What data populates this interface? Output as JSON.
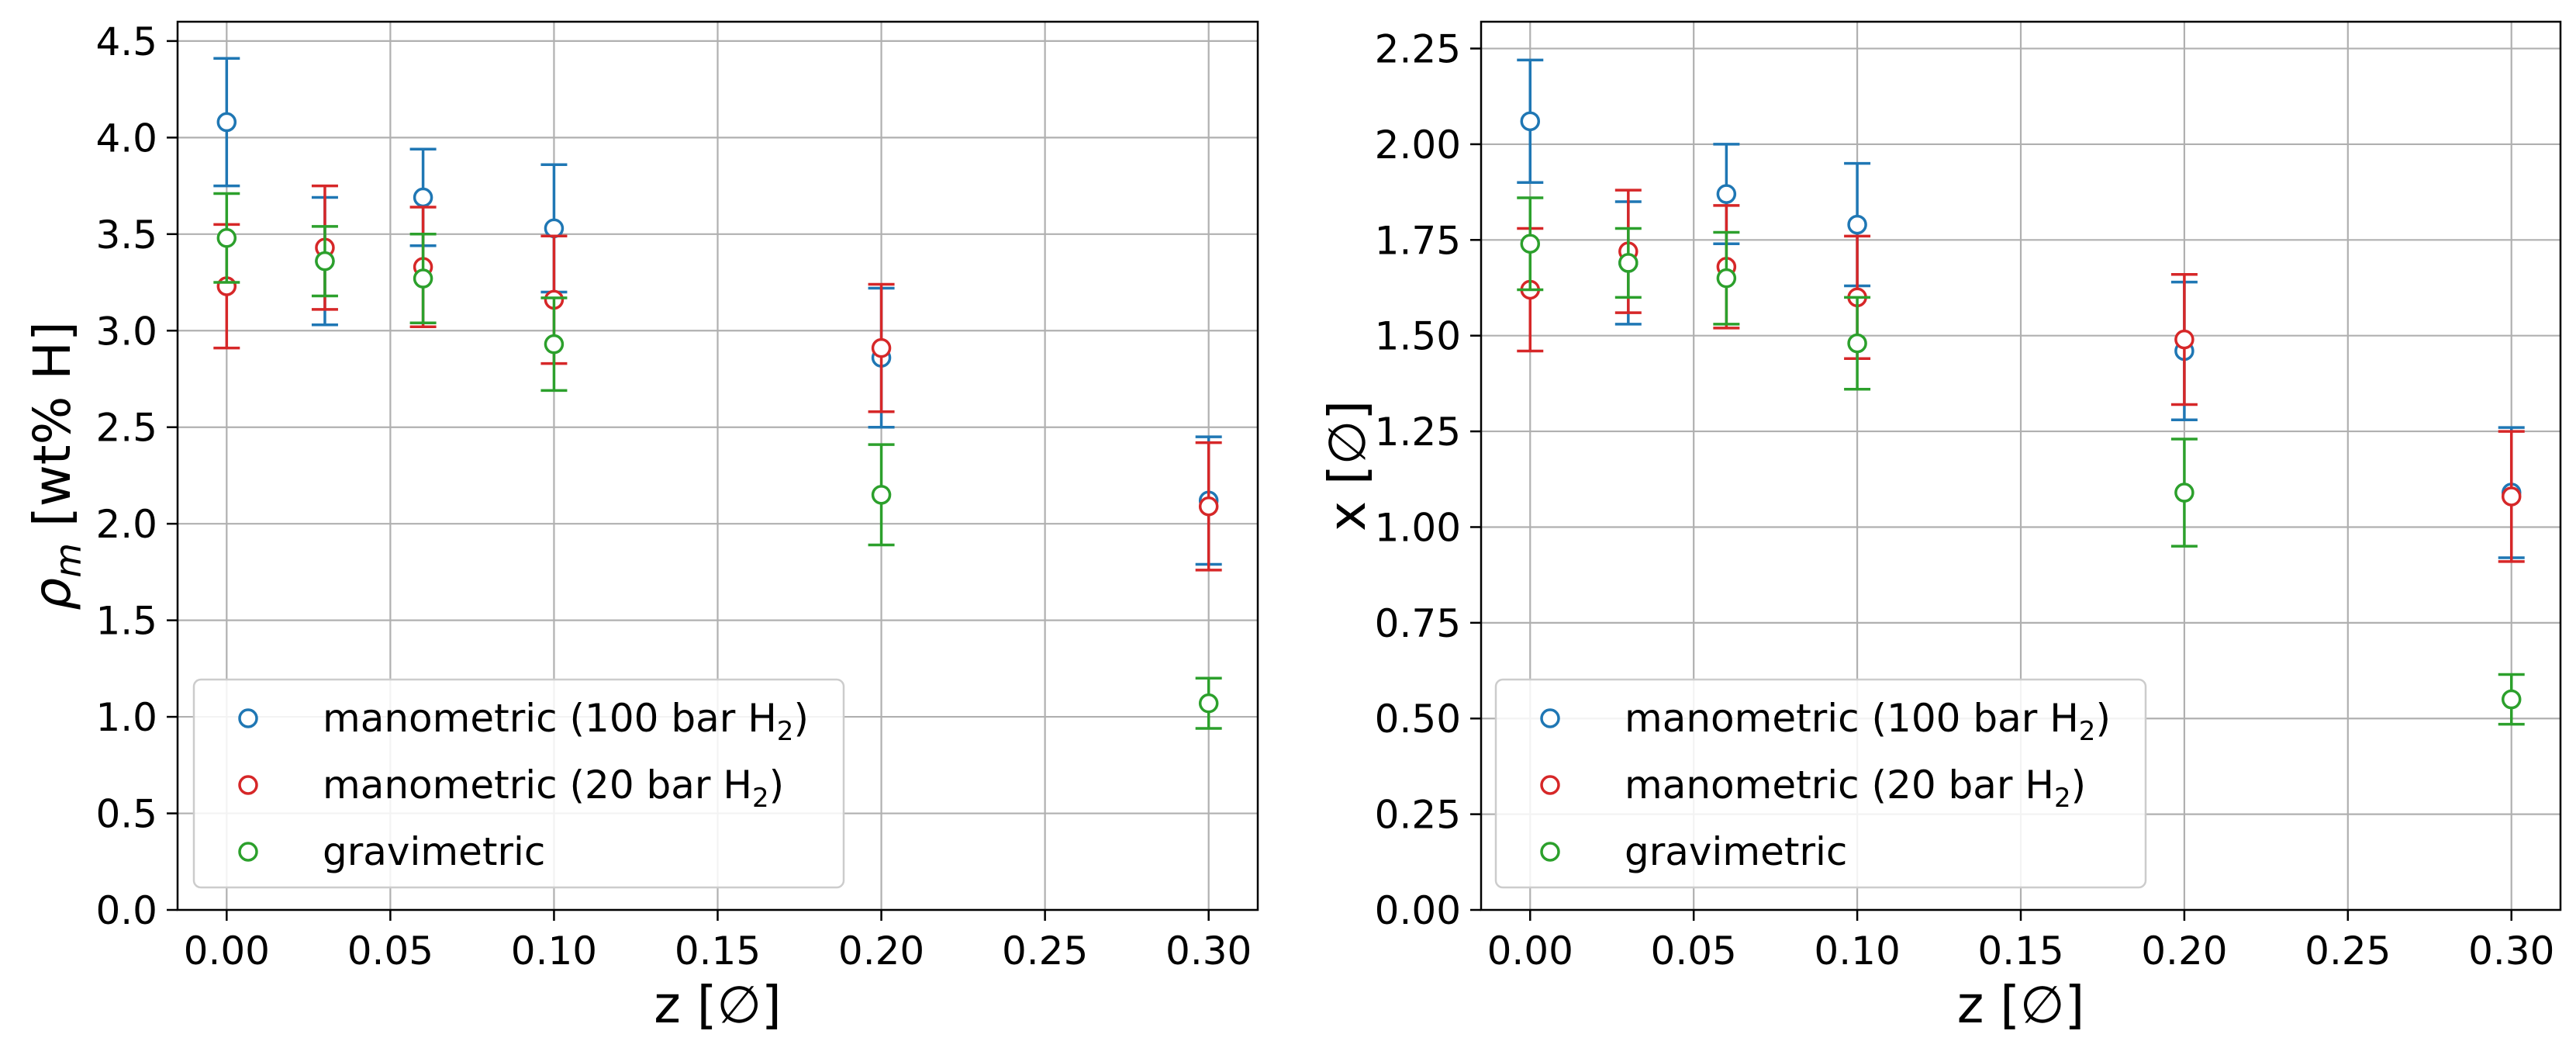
{
  "colors": {
    "manometric_100": "#1f77b4",
    "manometric_20": "#d62728",
    "gravimetric": "#2ca02c",
    "grid": "#b0b0b0",
    "axis": "#000000"
  },
  "chart_data": [
    {
      "type": "scatter",
      "xlabel": "z [∅]",
      "ylabel_symbol": "ρ",
      "ylabel_subscript": "m",
      "ylabel_rest": " [wt% H]",
      "xlim": [
        -0.015,
        0.315
      ],
      "ylim": [
        0,
        4.6
      ],
      "xticks": [
        0.0,
        0.05,
        0.1,
        0.15,
        0.2,
        0.25,
        0.3
      ],
      "xtick_labels": [
        "0.00",
        "0.05",
        "0.10",
        "0.15",
        "0.20",
        "0.25",
        "0.30"
      ],
      "yticks": [
        0.0,
        0.5,
        1.0,
        1.5,
        2.0,
        2.5,
        3.0,
        3.5,
        4.0,
        4.5
      ],
      "ytick_labels": [
        "0.0",
        "0.5",
        "1.0",
        "1.5",
        "2.0",
        "2.5",
        "3.0",
        "3.5",
        "4.0",
        "4.5"
      ],
      "grid": true,
      "legend_position": "lower-left",
      "series": [
        {
          "key": "m100",
          "color_key": "manometric_100",
          "legend_prefix": "manometric (100 bar H",
          "legend_sub": "2",
          "legend_suffix": ")",
          "x": [
            0.0,
            0.03,
            0.06,
            0.1,
            0.2,
            0.3
          ],
          "y": [
            4.08,
            3.36,
            3.69,
            3.53,
            2.86,
            2.12
          ],
          "err": [
            0.33,
            0.33,
            0.25,
            0.33,
            0.36,
            0.33
          ]
        },
        {
          "key": "m20",
          "color_key": "manometric_20",
          "legend_prefix": "manometric (20 bar H",
          "legend_sub": "2",
          "legend_suffix": ")",
          "x": [
            0.0,
            0.03,
            0.06,
            0.1,
            0.2,
            0.3
          ],
          "y": [
            3.23,
            3.43,
            3.33,
            3.16,
            2.91,
            2.09
          ],
          "err": [
            0.32,
            0.32,
            0.31,
            0.33,
            0.33,
            0.33
          ]
        },
        {
          "key": "grav",
          "color_key": "gravimetric",
          "legend_prefix": "gravimetric",
          "legend_sub": "",
          "legend_suffix": "",
          "x": [
            0.0,
            0.03,
            0.06,
            0.1,
            0.2,
            0.3
          ],
          "y": [
            3.48,
            3.36,
            3.27,
            2.93,
            2.15,
            1.07
          ],
          "err": [
            0.23,
            0.18,
            0.23,
            0.24,
            0.26,
            0.13
          ]
        }
      ]
    },
    {
      "type": "scatter",
      "xlabel": "z [∅]",
      "ylabel_symbol": "x",
      "ylabel_subscript": "",
      "ylabel_rest": " [∅]",
      "xlim": [
        -0.015,
        0.315
      ],
      "ylim": [
        0,
        2.32
      ],
      "xticks": [
        0.0,
        0.05,
        0.1,
        0.15,
        0.2,
        0.25,
        0.3
      ],
      "xtick_labels": [
        "0.00",
        "0.05",
        "0.10",
        "0.15",
        "0.20",
        "0.25",
        "0.30"
      ],
      "yticks": [
        0.0,
        0.25,
        0.5,
        0.75,
        1.0,
        1.25,
        1.5,
        1.75,
        2.0,
        2.25
      ],
      "ytick_labels": [
        "0.00",
        "0.25",
        "0.50",
        "0.75",
        "1.00",
        "1.25",
        "1.50",
        "1.75",
        "2.00",
        "2.25"
      ],
      "grid": true,
      "legend_position": "lower-left",
      "series": [
        {
          "key": "m100",
          "color_key": "manometric_100",
          "legend_prefix": "manometric (100 bar H",
          "legend_sub": "2",
          "legend_suffix": ")",
          "x": [
            0.0,
            0.03,
            0.06,
            0.1,
            0.2,
            0.3
          ],
          "y": [
            2.06,
            1.69,
            1.87,
            1.79,
            1.46,
            1.09
          ],
          "err": [
            0.16,
            0.16,
            0.13,
            0.16,
            0.18,
            0.17
          ]
        },
        {
          "key": "m20",
          "color_key": "manometric_20",
          "legend_prefix": "manometric (20 bar H",
          "legend_sub": "2",
          "legend_suffix": ")",
          "x": [
            0.0,
            0.03,
            0.06,
            0.1,
            0.2,
            0.3
          ],
          "y": [
            1.62,
            1.72,
            1.68,
            1.6,
            1.49,
            1.08
          ],
          "err": [
            0.16,
            0.16,
            0.16,
            0.16,
            0.17,
            0.17
          ]
        },
        {
          "key": "grav",
          "color_key": "gravimetric",
          "legend_prefix": "gravimetric",
          "legend_sub": "",
          "legend_suffix": "",
          "x": [
            0.0,
            0.03,
            0.06,
            0.1,
            0.2,
            0.3
          ],
          "y": [
            1.74,
            1.69,
            1.65,
            1.48,
            1.09,
            0.55
          ],
          "err": [
            0.12,
            0.09,
            0.12,
            0.12,
            0.14,
            0.065
          ]
        }
      ]
    }
  ]
}
